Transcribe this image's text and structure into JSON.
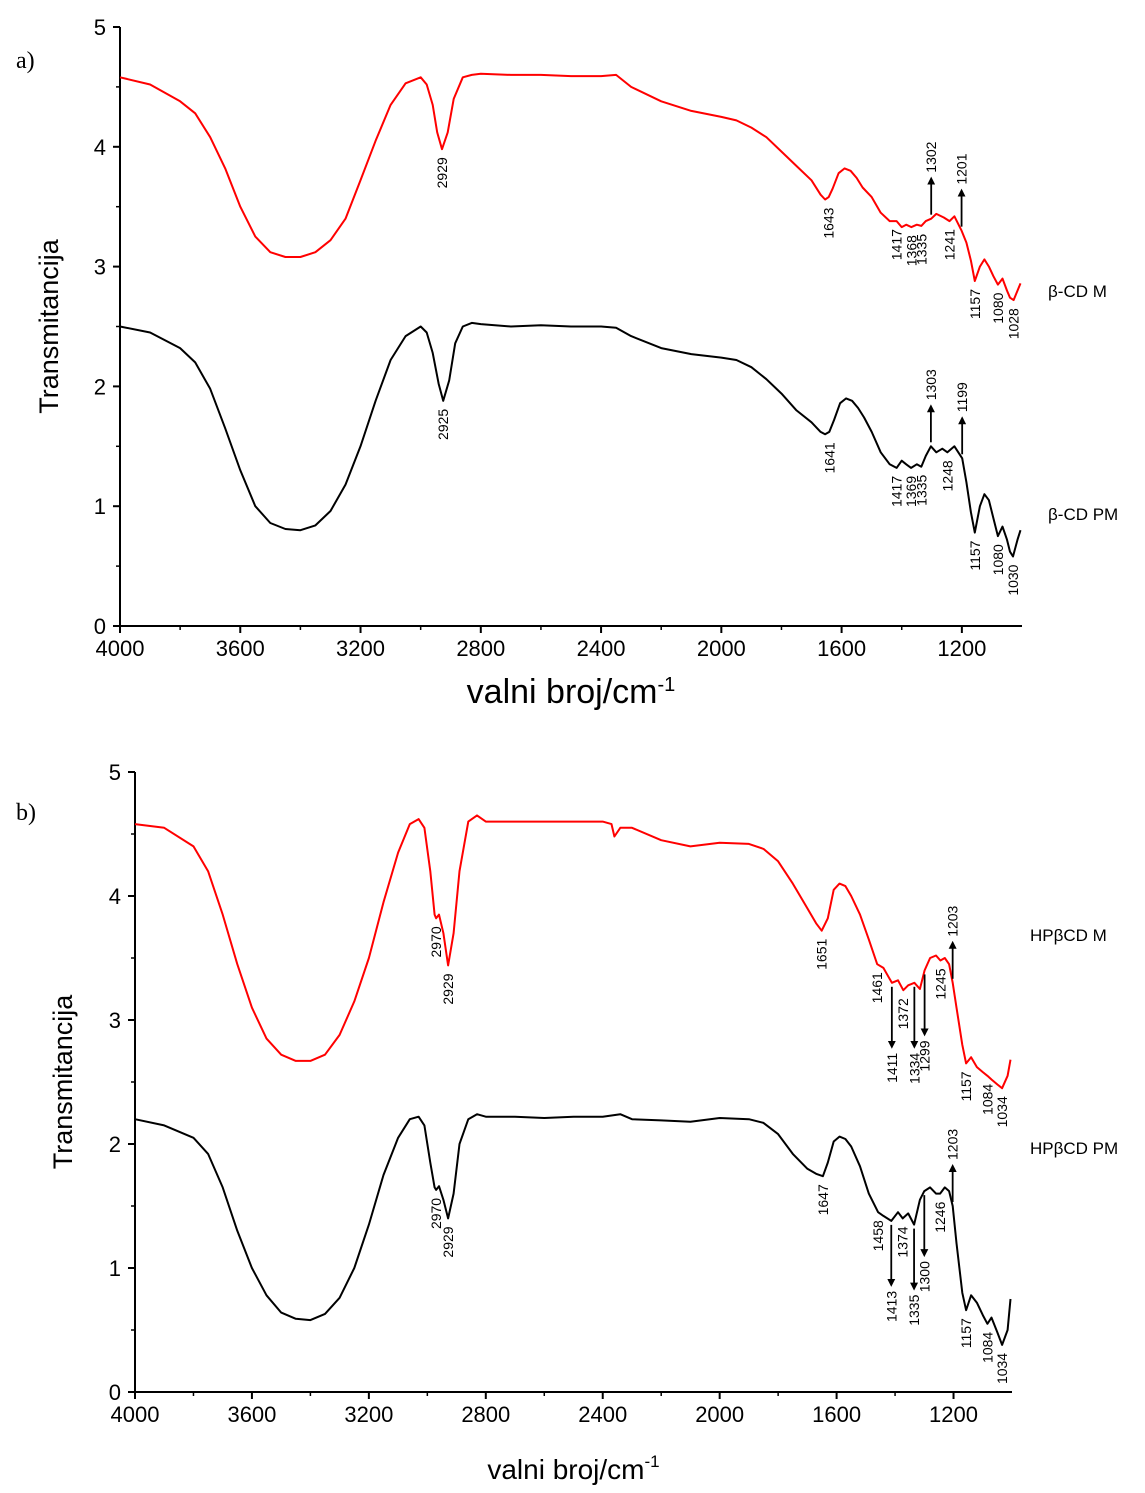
{
  "chart_data": [
    {
      "type": "line",
      "panel": "a)",
      "xlabel": "valni broj/cm",
      "xlabel_sup": "-1",
      "ylabel": "Transmitancija",
      "xlim": [
        4000,
        1000
      ],
      "ylim": [
        0,
        5
      ],
      "x_ticks": [
        4000,
        3600,
        3200,
        2800,
        2400,
        2000,
        1600,
        1200
      ],
      "y_ticks": [
        0,
        1,
        2,
        3,
        4,
        5
      ],
      "grid": false,
      "series": [
        {
          "name": "β-CD M",
          "color": "#ff0000",
          "x": [
            4000,
            3900,
            3800,
            3750,
            3700,
            3650,
            3600,
            3550,
            3500,
            3450,
            3400,
            3350,
            3300,
            3250,
            3200,
            3150,
            3100,
            3050,
            3000,
            2980,
            2960,
            2945,
            2929,
            2910,
            2890,
            2860,
            2830,
            2800,
            2700,
            2600,
            2500,
            2400,
            2350,
            2300,
            2200,
            2100,
            2000,
            1950,
            1900,
            1850,
            1800,
            1750,
            1700,
            1670,
            1655,
            1643,
            1630,
            1610,
            1590,
            1570,
            1550,
            1530,
            1500,
            1470,
            1440,
            1417,
            1400,
            1385,
            1368,
            1350,
            1335,
            1320,
            1302,
            1285,
            1260,
            1241,
            1225,
            1201,
            1185,
            1170,
            1157,
            1140,
            1125,
            1110,
            1095,
            1080,
            1065,
            1050,
            1040,
            1028,
            1015,
            1005
          ],
          "y": [
            4.58,
            4.52,
            4.38,
            4.28,
            4.08,
            3.82,
            3.5,
            3.25,
            3.12,
            3.08,
            3.08,
            3.12,
            3.22,
            3.4,
            3.72,
            4.05,
            4.35,
            4.53,
            4.58,
            4.52,
            4.35,
            4.12,
            3.98,
            4.12,
            4.4,
            4.58,
            4.6,
            4.61,
            4.6,
            4.6,
            4.59,
            4.59,
            4.6,
            4.5,
            4.38,
            4.3,
            4.25,
            4.22,
            4.16,
            4.08,
            3.96,
            3.84,
            3.72,
            3.6,
            3.56,
            3.58,
            3.65,
            3.78,
            3.82,
            3.8,
            3.74,
            3.66,
            3.58,
            3.45,
            3.38,
            3.38,
            3.33,
            3.35,
            3.33,
            3.35,
            3.34,
            3.38,
            3.4,
            3.44,
            3.41,
            3.38,
            3.42,
            3.3,
            3.2,
            3.05,
            2.88,
            3.0,
            3.06,
            3.0,
            2.92,
            2.85,
            2.9,
            2.8,
            2.74,
            2.72,
            2.8,
            2.86
          ]
        },
        {
          "name": "β-CD PM",
          "color": "#000000",
          "x": [
            4000,
            3900,
            3800,
            3750,
            3700,
            3650,
            3600,
            3550,
            3500,
            3450,
            3400,
            3350,
            3300,
            3250,
            3200,
            3150,
            3100,
            3050,
            3000,
            2980,
            2960,
            2940,
            2925,
            2905,
            2885,
            2860,
            2830,
            2800,
            2700,
            2600,
            2500,
            2400,
            2350,
            2300,
            2200,
            2100,
            2000,
            1950,
            1900,
            1850,
            1800,
            1750,
            1700,
            1670,
            1655,
            1641,
            1625,
            1605,
            1585,
            1565,
            1545,
            1525,
            1500,
            1470,
            1440,
            1417,
            1400,
            1385,
            1369,
            1350,
            1335,
            1320,
            1303,
            1285,
            1265,
            1248,
            1225,
            1199,
            1185,
            1170,
            1157,
            1140,
            1125,
            1110,
            1095,
            1080,
            1065,
            1050,
            1040,
            1030,
            1015,
            1005
          ],
          "y": [
            2.5,
            2.45,
            2.32,
            2.2,
            1.98,
            1.65,
            1.3,
            1.0,
            0.86,
            0.81,
            0.8,
            0.84,
            0.96,
            1.18,
            1.5,
            1.88,
            2.22,
            2.42,
            2.5,
            2.45,
            2.28,
            2.02,
            1.88,
            2.05,
            2.36,
            2.5,
            2.53,
            2.52,
            2.5,
            2.51,
            2.5,
            2.5,
            2.49,
            2.42,
            2.32,
            2.27,
            2.24,
            2.22,
            2.16,
            2.06,
            1.94,
            1.8,
            1.7,
            1.62,
            1.6,
            1.62,
            1.72,
            1.86,
            1.9,
            1.88,
            1.82,
            1.74,
            1.62,
            1.45,
            1.35,
            1.32,
            1.38,
            1.35,
            1.32,
            1.35,
            1.33,
            1.42,
            1.5,
            1.45,
            1.48,
            1.45,
            1.5,
            1.4,
            1.2,
            0.95,
            0.78,
            1.0,
            1.1,
            1.05,
            0.9,
            0.75,
            0.83,
            0.72,
            0.62,
            0.58,
            0.72,
            0.8
          ]
        }
      ],
      "annotations": [
        {
          "text": "2929",
          "series": 0,
          "x": 2929,
          "y": 3.98
        },
        {
          "text": "1643",
          "series": 0,
          "x": 1643,
          "y": 3.56
        },
        {
          "text": "1417",
          "series": 0,
          "x": 1417,
          "y": 3.38
        },
        {
          "text": "1368",
          "series": 0,
          "x": 1368,
          "y": 3.33
        },
        {
          "text": "1335",
          "series": 0,
          "x": 1335,
          "y": 3.34
        },
        {
          "text": "1302",
          "series": 0,
          "x": 1302,
          "y": 3.4,
          "arrow": "up"
        },
        {
          "text": "1241",
          "series": 0,
          "x": 1241,
          "y": 3.38
        },
        {
          "text": "1201",
          "series": 0,
          "x": 1201,
          "y": 3.3,
          "arrow": "up"
        },
        {
          "text": "1157",
          "series": 0,
          "x": 1157,
          "y": 2.88
        },
        {
          "text": "1080",
          "series": 0,
          "x": 1080,
          "y": 2.85
        },
        {
          "text": "1028",
          "series": 0,
          "x": 1028,
          "y": 2.72
        },
        {
          "text": "2925",
          "series": 1,
          "x": 2925,
          "y": 1.88
        },
        {
          "text": "1641",
          "series": 1,
          "x": 1641,
          "y": 1.6
        },
        {
          "text": "1417",
          "series": 1,
          "x": 1417,
          "y": 1.32
        },
        {
          "text": "1369",
          "series": 1,
          "x": 1369,
          "y": 1.32
        },
        {
          "text": "1335",
          "series": 1,
          "x": 1335,
          "y": 1.33
        },
        {
          "text": "1303",
          "series": 1,
          "x": 1303,
          "y": 1.5,
          "arrow": "up"
        },
        {
          "text": "1248",
          "series": 1,
          "x": 1248,
          "y": 1.45
        },
        {
          "text": "1199",
          "series": 1,
          "x": 1199,
          "y": 1.4,
          "arrow": "up"
        },
        {
          "text": "1157",
          "series": 1,
          "x": 1157,
          "y": 0.78
        },
        {
          "text": "1080",
          "series": 1,
          "x": 1080,
          "y": 0.75
        },
        {
          "text": "1030",
          "series": 1,
          "x": 1030,
          "y": 0.58
        }
      ]
    },
    {
      "type": "line",
      "panel": "b)",
      "xlabel": "valni broj/cm",
      "xlabel_sup": "-1",
      "ylabel": "Transmitancija",
      "xlim": [
        4000,
        1000
      ],
      "ylim": [
        0,
        5
      ],
      "x_ticks": [
        4000,
        3600,
        3200,
        2800,
        2400,
        2000,
        1600,
        1200
      ],
      "y_ticks": [
        0,
        1,
        2,
        3,
        4,
        5
      ],
      "grid": false,
      "series": [
        {
          "name": "HPβCD M",
          "color": "#ff0000",
          "x": [
            4000,
            3900,
            3800,
            3750,
            3700,
            3650,
            3600,
            3550,
            3500,
            3450,
            3400,
            3350,
            3300,
            3250,
            3200,
            3150,
            3100,
            3060,
            3030,
            3010,
            2990,
            2975,
            2970,
            2960,
            2945,
            2929,
            2910,
            2890,
            2860,
            2830,
            2800,
            2700,
            2600,
            2500,
            2400,
            2370,
            2360,
            2340,
            2300,
            2200,
            2100,
            2000,
            1900,
            1850,
            1800,
            1750,
            1700,
            1670,
            1651,
            1630,
            1610,
            1590,
            1570,
            1550,
            1520,
            1490,
            1461,
            1440,
            1411,
            1390,
            1372,
            1355,
            1334,
            1315,
            1299,
            1280,
            1260,
            1245,
            1230,
            1215,
            1203,
            1190,
            1170,
            1157,
            1140,
            1120,
            1100,
            1084,
            1070,
            1050,
            1034,
            1015,
            1005
          ],
          "y": [
            4.58,
            4.55,
            4.4,
            4.2,
            3.85,
            3.45,
            3.1,
            2.85,
            2.72,
            2.67,
            2.67,
            2.72,
            2.88,
            3.15,
            3.5,
            3.95,
            4.35,
            4.58,
            4.62,
            4.55,
            4.2,
            3.85,
            3.82,
            3.85,
            3.7,
            3.44,
            3.7,
            4.2,
            4.6,
            4.65,
            4.6,
            4.6,
            4.6,
            4.6,
            4.6,
            4.58,
            4.48,
            4.55,
            4.55,
            4.45,
            4.4,
            4.43,
            4.42,
            4.38,
            4.28,
            4.1,
            3.9,
            3.78,
            3.72,
            3.82,
            4.05,
            4.1,
            4.08,
            4.0,
            3.85,
            3.65,
            3.45,
            3.42,
            3.3,
            3.32,
            3.24,
            3.28,
            3.3,
            3.25,
            3.4,
            3.5,
            3.52,
            3.48,
            3.5,
            3.45,
            3.3,
            3.1,
            2.8,
            2.65,
            2.7,
            2.62,
            2.58,
            2.55,
            2.52,
            2.48,
            2.45,
            2.55,
            2.68
          ]
        },
        {
          "name": "HPβCD PM",
          "color": "#000000",
          "x": [
            4000,
            3900,
            3800,
            3750,
            3700,
            3650,
            3600,
            3550,
            3500,
            3450,
            3400,
            3350,
            3300,
            3250,
            3200,
            3150,
            3100,
            3060,
            3030,
            3010,
            2990,
            2975,
            2970,
            2960,
            2945,
            2929,
            2910,
            2890,
            2860,
            2830,
            2800,
            2700,
            2600,
            2500,
            2400,
            2340,
            2300,
            2200,
            2100,
            2000,
            1900,
            1850,
            1800,
            1750,
            1700,
            1670,
            1647,
            1630,
            1610,
            1590,
            1570,
            1550,
            1520,
            1490,
            1458,
            1440,
            1413,
            1390,
            1374,
            1355,
            1335,
            1315,
            1300,
            1280,
            1260,
            1246,
            1230,
            1215,
            1203,
            1190,
            1170,
            1157,
            1140,
            1120,
            1100,
            1084,
            1070,
            1050,
            1034,
            1015,
            1005
          ],
          "y": [
            2.2,
            2.15,
            2.05,
            1.92,
            1.65,
            1.3,
            1.0,
            0.78,
            0.64,
            0.59,
            0.58,
            0.63,
            0.76,
            1.0,
            1.35,
            1.75,
            2.05,
            2.2,
            2.22,
            2.15,
            1.85,
            1.65,
            1.63,
            1.66,
            1.55,
            1.4,
            1.6,
            2.0,
            2.2,
            2.24,
            2.22,
            2.22,
            2.21,
            2.22,
            2.22,
            2.24,
            2.2,
            2.19,
            2.18,
            2.21,
            2.2,
            2.17,
            2.08,
            1.92,
            1.8,
            1.76,
            1.74,
            1.85,
            2.02,
            2.06,
            2.04,
            1.98,
            1.82,
            1.6,
            1.45,
            1.42,
            1.38,
            1.45,
            1.4,
            1.44,
            1.35,
            1.55,
            1.62,
            1.65,
            1.6,
            1.6,
            1.65,
            1.62,
            1.5,
            1.2,
            0.8,
            0.66,
            0.78,
            0.72,
            0.62,
            0.55,
            0.6,
            0.48,
            0.38,
            0.5,
            0.75
          ]
        }
      ],
      "annotations": [
        {
          "text": "2970",
          "series": 0,
          "x": 2970,
          "y": 3.82
        },
        {
          "text": "2929",
          "series": 0,
          "x": 2929,
          "y": 3.44
        },
        {
          "text": "1651",
          "series": 0,
          "x": 1651,
          "y": 3.72
        },
        {
          "text": "1461",
          "series": 0,
          "x": 1461,
          "y": 3.45
        },
        {
          "text": "1411",
          "series": 0,
          "x": 1411,
          "y": 3.3,
          "arrow": "down"
        },
        {
          "text": "1372",
          "series": 0,
          "x": 1372,
          "y": 3.24
        },
        {
          "text": "1334",
          "series": 0,
          "x": 1334,
          "y": 3.3,
          "arrow": "down"
        },
        {
          "text": "1299",
          "series": 0,
          "x": 1299,
          "y": 3.4,
          "arrow": "down"
        },
        {
          "text": "1245",
          "series": 0,
          "x": 1245,
          "y": 3.48
        },
        {
          "text": "1203",
          "series": 0,
          "x": 1203,
          "y": 3.3,
          "arrow": "up"
        },
        {
          "text": "1157",
          "series": 0,
          "x": 1157,
          "y": 2.65
        },
        {
          "text": "1084",
          "series": 0,
          "x": 1084,
          "y": 2.55
        },
        {
          "text": "1034",
          "series": 0,
          "x": 1034,
          "y": 2.45
        },
        {
          "text": "2970",
          "series": 1,
          "x": 2970,
          "y": 1.63
        },
        {
          "text": "2929",
          "series": 1,
          "x": 2929,
          "y": 1.4
        },
        {
          "text": "1647",
          "series": 1,
          "x": 1647,
          "y": 1.74
        },
        {
          "text": "1458",
          "series": 1,
          "x": 1458,
          "y": 1.45
        },
        {
          "text": "1413",
          "series": 1,
          "x": 1413,
          "y": 1.38,
          "arrow": "down"
        },
        {
          "text": "1374",
          "series": 1,
          "x": 1374,
          "y": 1.4
        },
        {
          "text": "1335",
          "series": 1,
          "x": 1335,
          "y": 1.35,
          "arrow": "down"
        },
        {
          "text": "1300",
          "series": 1,
          "x": 1300,
          "y": 1.62,
          "arrow": "down"
        },
        {
          "text": "1246",
          "series": 1,
          "x": 1246,
          "y": 1.6
        },
        {
          "text": "1203",
          "series": 1,
          "x": 1203,
          "y": 1.5,
          "arrow": "up"
        },
        {
          "text": "1157",
          "series": 1,
          "x": 1157,
          "y": 0.66
        },
        {
          "text": "1084",
          "series": 1,
          "x": 1084,
          "y": 0.55
        },
        {
          "text": "1034",
          "series": 1,
          "x": 1034,
          "y": 0.38
        }
      ]
    }
  ]
}
